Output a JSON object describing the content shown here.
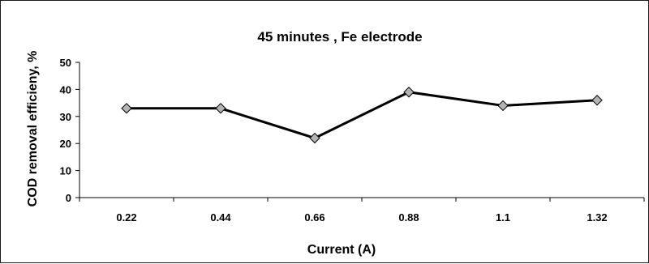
{
  "chart_data": {
    "type": "line",
    "title": "45 minutes , Fe electrode",
    "xlabel": "Current (A)",
    "ylabel": "COD removal efficieny, %",
    "categories": [
      "0.22",
      "0.44",
      "0.66",
      "0.88",
      "1.1",
      "1.32"
    ],
    "series": [
      {
        "values": [
          33,
          33,
          22,
          39,
          34,
          36
        ],
        "color": "#000000",
        "marker": "diamond",
        "marker_color": "#b3b3b3"
      }
    ],
    "ylim": [
      0,
      50
    ],
    "yticks": [
      "0",
      "10",
      "20",
      "30",
      "40",
      "50"
    ],
    "grid": false,
    "legend": "none"
  }
}
